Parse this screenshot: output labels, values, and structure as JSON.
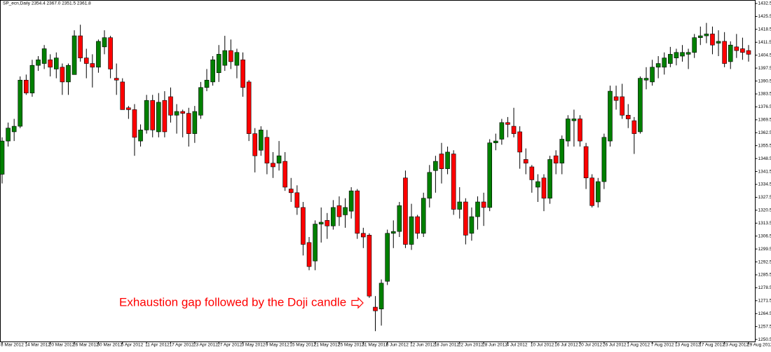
{
  "chart_data": {
    "type": "candlestick",
    "title": "SP_ecn,Daily  2354.4 2367.0 2351.5 2361.8",
    "annotation": "Exhaustion gap followed by the Doji candle",
    "categories": [
      "8 Mar 2012",
      null,
      null,
      null,
      "14 Mar 2012",
      null,
      null,
      null,
      "20 Mar 2012",
      null,
      null,
      null,
      "26 Mar 2012",
      null,
      null,
      null,
      "30 Mar 2012",
      null,
      null,
      null,
      "5 Apr 2012",
      null,
      null,
      null,
      "11 Apr 2012",
      null,
      null,
      null,
      "17 Apr 2012",
      null,
      null,
      null,
      "23 Apr 2012",
      null,
      null,
      null,
      "27 Apr 2012",
      null,
      null,
      null,
      "3 May 2012",
      null,
      null,
      null,
      "9 May 2012",
      null,
      null,
      null,
      "15 May 2012",
      null,
      null,
      null,
      "21 May 2012",
      null,
      null,
      null,
      "25 May 2012",
      null,
      null,
      null,
      "31 May 2012",
      null,
      null,
      null,
      "6 Jun 2012",
      null,
      null,
      null,
      "12 Jun 2012",
      null,
      null,
      null,
      "18 Jun 2012",
      null,
      null,
      null,
      "22 Jun 2012",
      null,
      null,
      null,
      "28 Jun 2012",
      null,
      null,
      null,
      "4 Jul 2012",
      null,
      null,
      null,
      "10 Jul 2012",
      null,
      null,
      null,
      "16 Jul 2012",
      null,
      null,
      null,
      "20 Jul 2012",
      null,
      null,
      null,
      "26 Jul 2012",
      null,
      null,
      null,
      "1 Aug 2012",
      null,
      null,
      null,
      "7 Aug 2012",
      null,
      null,
      null,
      "13 Aug 2012",
      null,
      null,
      null,
      "17 Aug 2012",
      null,
      null,
      null,
      "23 Aug 2012",
      null,
      null,
      null,
      "29 Aug 2012"
    ],
    "open": [
      1340,
      1358,
      1363,
      1366,
      1391,
      1384,
      1399,
      1400,
      1402,
      1397,
      1398,
      1390,
      1394,
      1415,
      1403,
      1400,
      1398,
      1409,
      1414,
      1392,
      1390,
      1376,
      1375,
      1358,
      1364,
      1380,
      1363,
      1380,
      1382,
      1372,
      1374,
      1373,
      1362,
      1372,
      1387,
      1390,
      1395,
      1399,
      1407,
      1399,
      1402,
      1390,
      1362,
      1353,
      1360,
      1346,
      1346,
      1347,
      1332,
      1330,
      1322,
      1303,
      1293,
      1313,
      1315,
      1312,
      1323,
      1318,
      1320,
      1331,
      1308,
      1307,
      1268,
      1267,
      1282,
      1308,
      1309,
      1338,
      1302,
      1317,
      1308,
      1327,
      1342,
      1351,
      1343,
      1351,
      1321,
      1325,
      1308,
      1317,
      1325,
      1322,
      1357,
      1359,
      1368,
      1366,
      1363,
      1348,
      1344,
      1333,
      1338,
      1327,
      1350,
      1346,
      1358,
      1369,
      1370,
      1355,
      1338,
      1325,
      1336,
      1358,
      1382,
      1382,
      1372,
      1369,
      1363,
      1391,
      1390,
      1398,
      1398,
      1400,
      1403,
      1404,
      1405,
      1406,
      1414,
      1415,
      1416,
      1411,
      1412,
      1401,
      1409,
      1408,
      1407
    ],
    "high": [
      1360,
      1368,
      1370,
      1393,
      1394,
      1402,
      1404,
      1410,
      1405,
      1406,
      1400,
      1400,
      1418,
      1421,
      1408,
      1405,
      1413,
      1418,
      1415,
      1400,
      1392,
      1377,
      1378,
      1367,
      1383,
      1383,
      1384,
      1385,
      1387,
      1378,
      1375,
      1376,
      1377,
      1390,
      1397,
      1404,
      1410,
      1415,
      1413,
      1408,
      1406,
      1391,
      1365,
      1366,
      1364,
      1352,
      1358,
      1352,
      1338,
      1334,
      1325,
      1306,
      1315,
      1322,
      1319,
      1326,
      1328,
      1327,
      1333,
      1332,
      1311,
      1308,
      1274,
      1283,
      1310,
      1315,
      1325,
      1342,
      1324,
      1318,
      1330,
      1345,
      1350,
      1357,
      1355,
      1353,
      1333,
      1327,
      1322,
      1328,
      1330,
      1359,
      1362,
      1370,
      1371,
      1376,
      1366,
      1354,
      1345,
      1340,
      1340,
      1350,
      1353,
      1361,
      1372,
      1375,
      1372,
      1357,
      1340,
      1338,
      1362,
      1388,
      1388,
      1389,
      1378,
      1371,
      1393,
      1398,
      1402,
      1404,
      1406,
      1409,
      1408,
      1410,
      1408,
      1416,
      1420,
      1422,
      1420,
      1418,
      1417,
      1412,
      1416,
      1414,
      1410
    ],
    "low": [
      1335,
      1355,
      1358,
      1365,
      1383,
      1382,
      1396,
      1397,
      1393,
      1392,
      1383,
      1383,
      1394,
      1401,
      1392,
      1387,
      1395,
      1405,
      1392,
      1383,
      1375,
      1370,
      1350,
      1355,
      1362,
      1360,
      1360,
      1360,
      1368,
      1362,
      1360,
      1355,
      1357,
      1370,
      1385,
      1388,
      1390,
      1396,
      1397,
      1392,
      1382,
      1358,
      1341,
      1350,
      1340,
      1338,
      1342,
      1331,
      1325,
      1318,
      1296,
      1288,
      1288,
      1303,
      1305,
      1310,
      1312,
      1311,
      1316,
      1305,
      1300,
      1273,
      1255,
      1258,
      1280,
      1300,
      1306,
      1300,
      1299,
      1305,
      1306,
      1322,
      1330,
      1335,
      1340,
      1318,
      1316,
      1302,
      1304,
      1310,
      1312,
      1320,
      1353,
      1356,
      1360,
      1360,
      1343,
      1340,
      1330,
      1325,
      1320,
      1324,
      1340,
      1340,
      1355,
      1355,
      1355,
      1332,
      1322,
      1322,
      1332,
      1355,
      1375,
      1370,
      1365,
      1351,
      1362,
      1386,
      1388,
      1392,
      1394,
      1398,
      1399,
      1401,
      1397,
      1403,
      1410,
      1411,
      1405,
      1404,
      1398,
      1397,
      1403,
      1402,
      1401
    ],
    "close": [
      1358,
      1365,
      1366,
      1391,
      1384,
      1399,
      1402,
      1408,
      1398,
      1403,
      1390,
      1399,
      1415,
      1403,
      1400,
      1398,
      1412,
      1414,
      1397,
      1391,
      1375,
      1375,
      1360,
      1364,
      1380,
      1364,
      1379,
      1363,
      1372,
      1374,
      1373,
      1362,
      1374,
      1387,
      1391,
      1402,
      1405,
      1407,
      1401,
      1406,
      1387,
      1362,
      1350,
      1364,
      1346,
      1344,
      1350,
      1333,
      1330,
      1322,
      1302,
      1290,
      1313,
      1314,
      1312,
      1322,
      1317,
      1322,
      1331,
      1308,
      1306,
      1274,
      1266,
      1281,
      1308,
      1309,
      1323,
      1302,
      1317,
      1308,
      1327,
      1341,
      1347,
      1343,
      1352,
      1321,
      1325,
      1307,
      1317,
      1325,
      1322,
      1357,
      1358,
      1368,
      1367,
      1362,
      1352,
      1346,
      1337,
      1336,
      1327,
      1348,
      1346,
      1359,
      1370,
      1370,
      1358,
      1338,
      1323,
      1336,
      1360,
      1385,
      1380,
      1372,
      1370,
      1362,
      1392,
      1392,
      1398,
      1400,
      1403,
      1405,
      1406,
      1406,
      1406,
      1414,
      1415,
      1416,
      1410,
      1412,
      1400,
      1410,
      1407,
      1406,
      1405
    ],
    "up_color": "#008000",
    "down_color": "#ff0000",
    "wick_color": "#000000",
    "ylim": [
      1249.4,
      1434.4
    ],
    "yticks": [
      1432.5,
      1425.5,
      1418.5,
      1411.5,
      1404.5,
      1397.5,
      1390.5,
      1383.5,
      1376.5,
      1369.5,
      1362.5,
      1355.5,
      1348.5,
      1341.5,
      1334.5,
      1327.5,
      1320.5,
      1313.5,
      1306.5,
      1299.5,
      1292.5,
      1285.5,
      1278.5,
      1271.5,
      1264.5,
      1257.5,
      1250.5
    ],
    "grid": false
  }
}
